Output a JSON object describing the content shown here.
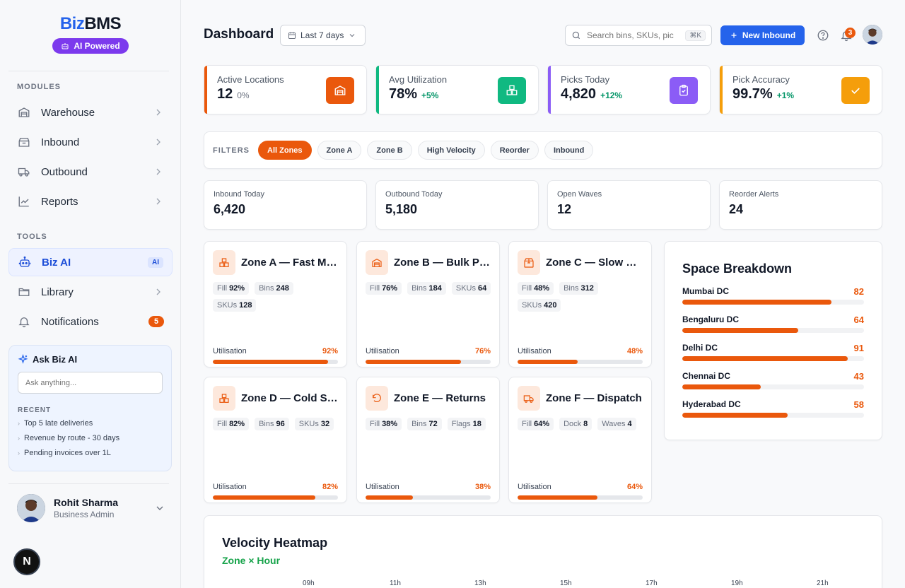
{
  "brand": {
    "prefix": "Biz",
    "suffix": "BMS",
    "pill": "AI Powered"
  },
  "sidebar": {
    "modules_label": "MODULES",
    "modules": [
      {
        "label": "Warehouse",
        "icon": "warehouse-icon"
      },
      {
        "label": "Inbound",
        "icon": "inbound-icon"
      },
      {
        "label": "Outbound",
        "icon": "truck-icon"
      },
      {
        "label": "Reports",
        "icon": "chart-icon"
      }
    ],
    "tools_label": "TOOLS",
    "tools": [
      {
        "label": "Biz AI",
        "icon": "bot-icon",
        "tag": "AI"
      },
      {
        "label": "Library",
        "icon": "folder-icon"
      },
      {
        "label": "Notifications",
        "icon": "bell-icon",
        "badge": "5"
      }
    ],
    "ask": {
      "title": "Ask Biz AI",
      "placeholder": "Ask anything...",
      "recent_label": "RECENT",
      "recent": [
        "Top 5 late deliveries",
        "Revenue by route - 30 days",
        "Pending invoices over 1L"
      ]
    },
    "user": {
      "name": "Rohit Sharma",
      "role": "Business Admin"
    },
    "n_button": "N"
  },
  "header": {
    "title": "Dashboard",
    "date_range": "Last 7 days",
    "search_placeholder": "Search bins, SKUs, pic",
    "shortcut": "⌘K",
    "new_button": "New Inbound",
    "notif_count": "3"
  },
  "kpis": [
    {
      "label": "Active Locations",
      "value": "12",
      "delta": "0%",
      "accent": "#ea580c",
      "icon": "warehouse-icon"
    },
    {
      "label": "Avg Utilization",
      "value": "78%",
      "delta": "+5%",
      "accent": "#10b981",
      "icon": "boxes-icon"
    },
    {
      "label": "Picks Today",
      "value": "4,820",
      "delta": "+12%",
      "accent": "#8b5cf6",
      "icon": "clipboard-check-icon"
    },
    {
      "label": "Pick Accuracy",
      "value": "99.7%",
      "delta": "+1%",
      "accent": "#f59e0b",
      "icon": "check-icon"
    }
  ],
  "filters": {
    "label": "FILTERS",
    "chips": [
      "All Zones",
      "Zone A",
      "Zone B",
      "High Velocity",
      "Reorder",
      "Inbound"
    ],
    "active": "All Zones"
  },
  "stats": [
    {
      "label": "Inbound Today",
      "value": "6,420"
    },
    {
      "label": "Outbound Today",
      "value": "5,180"
    },
    {
      "label": "Open Waves",
      "value": "12"
    },
    {
      "label": "Reorder Alerts",
      "value": "24"
    }
  ],
  "zones": [
    {
      "title": "Zone A — Fast Moving",
      "icon": "boxes-icon",
      "tags": [
        [
          "Fill",
          "92%"
        ],
        [
          "Bins",
          "248"
        ],
        [
          "SKUs",
          "128"
        ]
      ],
      "util_label": "Utilisation",
      "util": "92%",
      "fill": 0.92
    },
    {
      "title": "Zone B — Bulk Pallets",
      "icon": "warehouse-icon",
      "tags": [
        [
          "Fill",
          "76%"
        ],
        [
          "Bins",
          "184"
        ],
        [
          "SKUs",
          "64"
        ]
      ],
      "util_label": "Utilisation",
      "util": "76%",
      "fill": 0.76
    },
    {
      "title": "Zone C — Slow Moving",
      "icon": "package-icon",
      "tags": [
        [
          "Fill",
          "48%"
        ],
        [
          "Bins",
          "312"
        ],
        [
          "SKUs",
          "420"
        ]
      ],
      "util_label": "Utilisation",
      "util": "48%",
      "fill": 0.48
    },
    {
      "title": "Zone D — Cold Storage",
      "icon": "boxes-icon",
      "tags": [
        [
          "Fill",
          "82%"
        ],
        [
          "Bins",
          "96"
        ],
        [
          "SKUs",
          "32"
        ]
      ],
      "util_label": "Utilisation",
      "util": "82%",
      "fill": 0.82
    },
    {
      "title": "Zone E — Returns",
      "icon": "return-icon",
      "tags": [
        [
          "Fill",
          "38%"
        ],
        [
          "Bins",
          "72"
        ],
        [
          "Flags",
          "18"
        ]
      ],
      "util_label": "Utilisation",
      "util": "38%",
      "fill": 0.38
    },
    {
      "title": "Zone F — Dispatch",
      "icon": "truck-icon",
      "tags": [
        [
          "Fill",
          "64%"
        ],
        [
          "Dock",
          "8"
        ],
        [
          "Waves",
          "4"
        ]
      ],
      "util_label": "Utilisation",
      "util": "64%",
      "fill": 0.64
    }
  ],
  "space": {
    "title": "Space Breakdown",
    "rows": [
      {
        "name": "Mumbai DC",
        "value": "82",
        "fill": 0.82
      },
      {
        "name": "Bengaluru DC",
        "value": "64",
        "fill": 0.64
      },
      {
        "name": "Delhi DC",
        "value": "91",
        "fill": 0.91
      },
      {
        "name": "Chennai DC",
        "value": "43",
        "fill": 0.43
      },
      {
        "name": "Hyderabad DC",
        "value": "58",
        "fill": 0.58
      }
    ]
  },
  "heatmap": {
    "title": "Velocity Heatmap",
    "subtitle": "Zone × Hour",
    "hours": [
      "09h",
      "11h",
      "13h",
      "15h",
      "17h",
      "19h",
      "21h"
    ]
  },
  "colors": {
    "accent": "#ea580c",
    "primary": "#2563eb",
    "ai": "#7c3aed"
  }
}
